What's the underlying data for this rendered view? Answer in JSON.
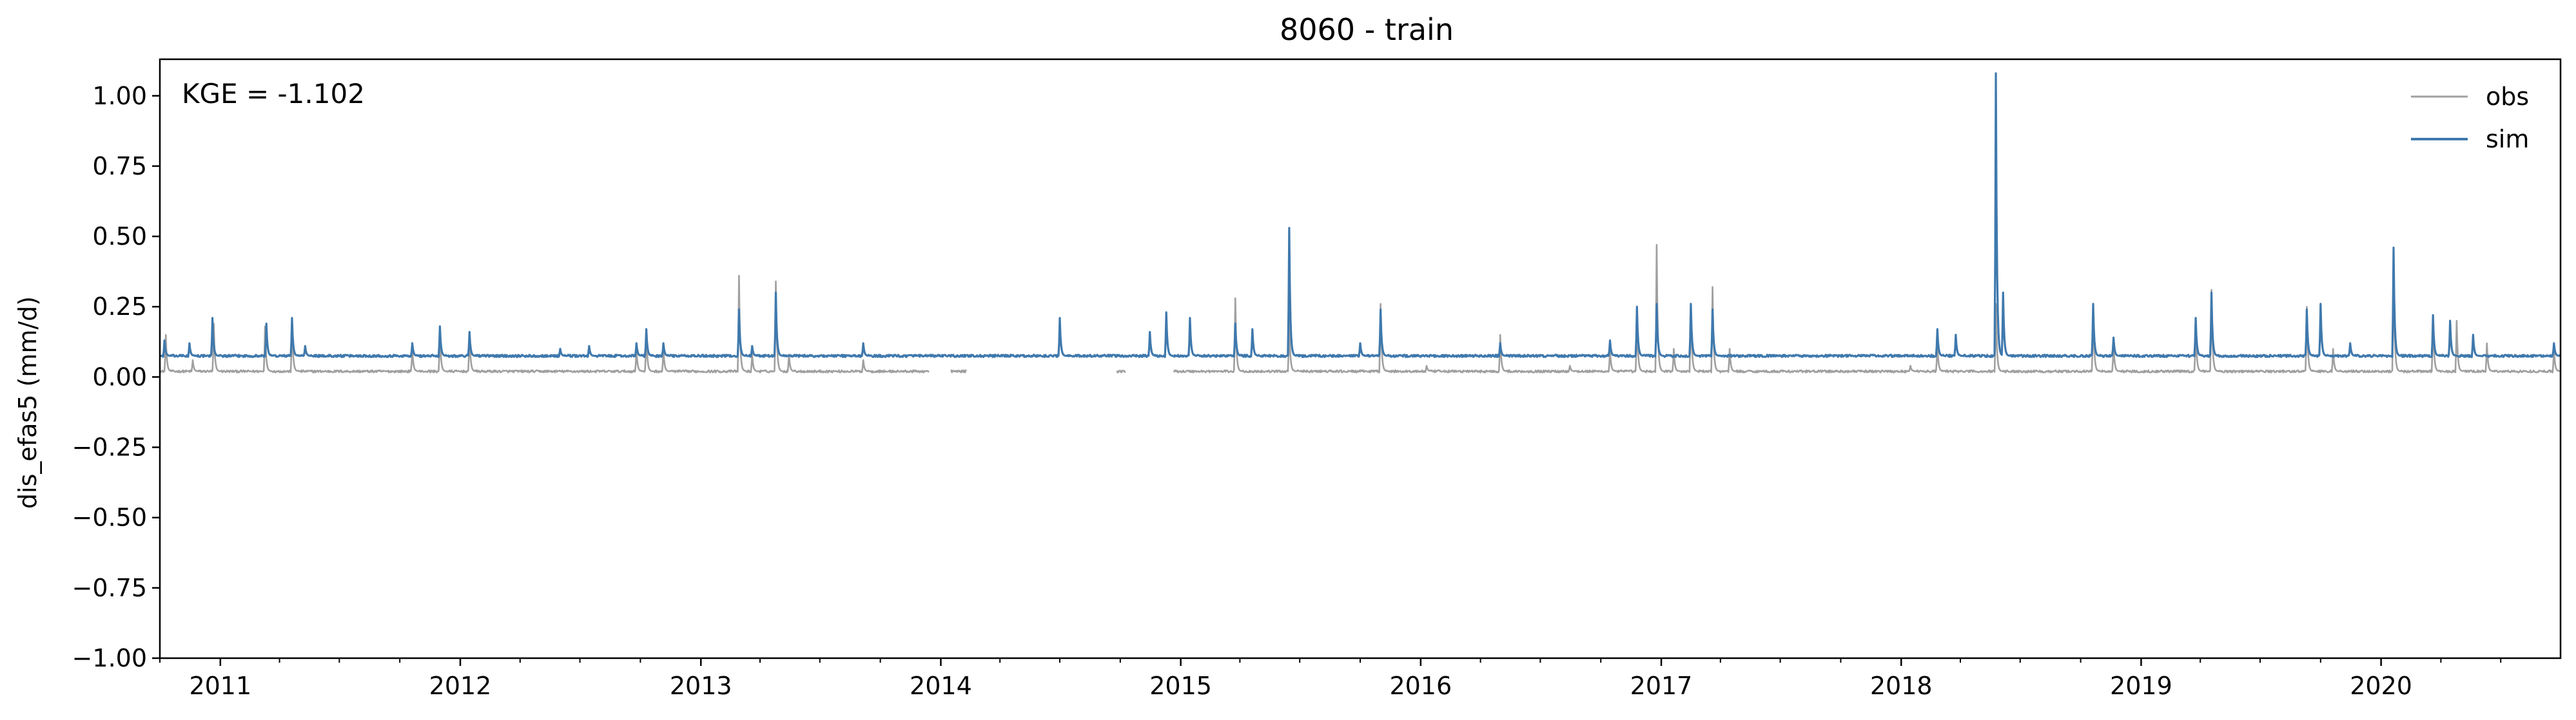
{
  "chart_data": {
    "type": "line",
    "title": "8060 - train",
    "xlabel": "",
    "ylabel": "dis_efas5 (mm/d)",
    "annotation": "KGE = -1.102",
    "xlim": [
      "2010-10-01",
      "2020-09-30"
    ],
    "ylim": [
      -1.0,
      1.13
    ],
    "x_ticks": [
      "2011",
      "2012",
      "2013",
      "2014",
      "2015",
      "2016",
      "2017",
      "2018",
      "2019",
      "2020"
    ],
    "y_ticks": [
      "1.00",
      "0.75",
      "0.50",
      "0.25",
      "0.00",
      "−0.25",
      "−0.50",
      "−0.75",
      "−1.00"
    ],
    "y_tick_values": [
      1.0,
      0.75,
      0.5,
      0.25,
      0.0,
      -0.25,
      -0.5,
      -0.75,
      -1.0
    ],
    "grid": false,
    "legend_position": "top-right",
    "series": [
      {
        "name": "obs",
        "color": "#a0a0a0",
        "baseline": 0.02,
        "gaps": [
          [
            "2013-12-15",
            "2014-01-15"
          ],
          [
            "2014-02-10",
            "2014-09-25"
          ],
          [
            "2014-10-10",
            "2014-12-20"
          ]
        ],
        "peaks": [
          [
            "2010-10-10",
            0.15
          ],
          [
            "2010-11-20",
            0.06
          ],
          [
            "2010-12-22",
            0.19
          ],
          [
            "2011-03-10",
            0.18
          ],
          [
            "2011-04-20",
            0.2
          ],
          [
            "2011-10-20",
            0.1
          ],
          [
            "2011-12-01",
            0.16
          ],
          [
            "2012-01-15",
            0.16
          ],
          [
            "2012-09-25",
            0.1
          ],
          [
            "2012-10-10",
            0.16
          ],
          [
            "2012-11-05",
            0.1
          ],
          [
            "2013-02-28",
            0.36
          ],
          [
            "2013-03-20",
            0.08
          ],
          [
            "2013-04-25",
            0.34
          ],
          [
            "2013-05-15",
            0.08
          ],
          [
            "2013-09-05",
            0.06
          ],
          [
            "2014-07-01",
            0.04
          ],
          [
            "2015-03-25",
            0.28
          ],
          [
            "2015-06-15",
            0.2
          ],
          [
            "2015-11-01",
            0.26
          ],
          [
            "2016-01-10",
            0.04
          ],
          [
            "2016-05-01",
            0.15
          ],
          [
            "2016-08-15",
            0.04
          ],
          [
            "2016-10-15",
            0.1
          ],
          [
            "2016-11-25",
            0.22
          ],
          [
            "2016-12-25",
            0.47
          ],
          [
            "2017-01-20",
            0.1
          ],
          [
            "2017-02-15",
            0.26
          ],
          [
            "2017-03-20",
            0.32
          ],
          [
            "2017-04-15",
            0.1
          ],
          [
            "2018-01-15",
            0.04
          ],
          [
            "2018-02-25",
            0.12
          ],
          [
            "2018-05-25",
            0.26
          ],
          [
            "2018-10-20",
            0.25
          ],
          [
            "2018-11-20",
            0.12
          ],
          [
            "2019-03-25",
            0.18
          ],
          [
            "2019-04-18",
            0.31
          ],
          [
            "2019-09-10",
            0.25
          ],
          [
            "2019-10-20",
            0.1
          ],
          [
            "2020-01-20",
            0.4
          ],
          [
            "2020-03-20",
            0.22
          ],
          [
            "2020-04-25",
            0.2
          ],
          [
            "2020-06-10",
            0.12
          ],
          [
            "2020-09-20",
            0.1
          ]
        ]
      },
      {
        "name": "sim",
        "color": "#3f79ad",
        "baseline": 0.075,
        "peaks": [
          [
            "2010-10-08",
            0.13
          ],
          [
            "2010-11-15",
            0.12
          ],
          [
            "2010-12-20",
            0.21
          ],
          [
            "2011-03-12",
            0.19
          ],
          [
            "2011-04-20",
            0.21
          ],
          [
            "2011-05-10",
            0.11
          ],
          [
            "2011-10-20",
            0.12
          ],
          [
            "2011-12-01",
            0.18
          ],
          [
            "2012-01-15",
            0.16
          ],
          [
            "2012-06-01",
            0.1
          ],
          [
            "2012-07-15",
            0.11
          ],
          [
            "2012-09-25",
            0.12
          ],
          [
            "2012-10-10",
            0.17
          ],
          [
            "2012-11-05",
            0.12
          ],
          [
            "2013-02-28",
            0.24
          ],
          [
            "2013-03-20",
            0.11
          ],
          [
            "2013-04-25",
            0.3
          ],
          [
            "2013-09-05",
            0.12
          ],
          [
            "2014-07-01",
            0.21
          ],
          [
            "2014-11-15",
            0.16
          ],
          [
            "2014-12-10",
            0.23
          ],
          [
            "2015-01-15",
            0.21
          ],
          [
            "2015-03-25",
            0.19
          ],
          [
            "2015-04-20",
            0.17
          ],
          [
            "2015-06-15",
            0.53
          ],
          [
            "2015-10-01",
            0.12
          ],
          [
            "2015-11-01",
            0.24
          ],
          [
            "2016-05-01",
            0.12
          ],
          [
            "2016-10-15",
            0.13
          ],
          [
            "2016-11-25",
            0.25
          ],
          [
            "2016-12-25",
            0.26
          ],
          [
            "2017-02-15",
            0.26
          ],
          [
            "2017-03-20",
            0.24
          ],
          [
            "2018-02-25",
            0.17
          ],
          [
            "2018-03-25",
            0.15
          ],
          [
            "2018-05-25",
            1.08
          ],
          [
            "2018-06-05",
            0.3
          ],
          [
            "2018-10-20",
            0.26
          ],
          [
            "2018-11-20",
            0.14
          ],
          [
            "2019-03-25",
            0.21
          ],
          [
            "2019-04-18",
            0.3
          ],
          [
            "2019-09-10",
            0.24
          ],
          [
            "2019-10-01",
            0.26
          ],
          [
            "2019-11-15",
            0.12
          ],
          [
            "2020-01-20",
            0.46
          ],
          [
            "2020-03-20",
            0.22
          ],
          [
            "2020-04-15",
            0.2
          ],
          [
            "2020-05-20",
            0.15
          ],
          [
            "2020-09-20",
            0.12
          ]
        ]
      }
    ]
  }
}
